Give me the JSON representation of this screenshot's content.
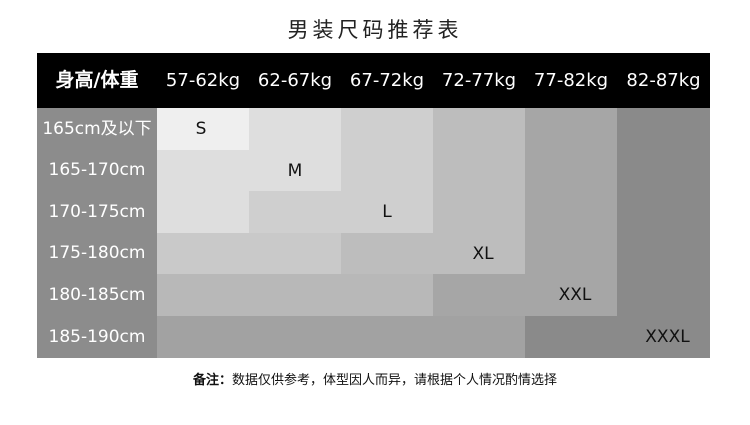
{
  "title": "男装尺码推荐表",
  "header": {
    "corner": "身高/体重",
    "weights": [
      "57-62kg",
      "62-67kg",
      "67-72kg",
      "72-77kg",
      "77-82kg",
      "82-87kg"
    ]
  },
  "heights": [
    "165cm及以下",
    "165-170cm",
    "170-175cm",
    "175-180cm",
    "180-185cm",
    "185-190cm"
  ],
  "sizes": [
    "S",
    "M",
    "L",
    "XL",
    "XXL",
    "XXXL"
  ],
  "cell_colors": [
    [
      "#efefef",
      "#dedede",
      "#cfcfcf",
      "#bdbdbd",
      "#a6a6a6",
      "#8a8a8a"
    ],
    [
      "#dedede",
      "#dedede",
      "#cfcfcf",
      "#bdbdbd",
      "#a6a6a6",
      "#8a8a8a"
    ],
    [
      "#dedede",
      "#cfcfcf",
      "#cfcfcf",
      "#bdbdbd",
      "#a6a6a6",
      "#8a8a8a"
    ],
    [
      "#c9c9c9",
      "#c9c9c9",
      "#bdbdbd",
      "#bdbdbd",
      "#a6a6a6",
      "#8a8a8a"
    ],
    [
      "#b8b8b8",
      "#b8b8b8",
      "#b8b8b8",
      "#a6a6a6",
      "#a6a6a6",
      "#8a8a8a"
    ],
    [
      "#a2a2a2",
      "#a2a2a2",
      "#a2a2a2",
      "#a2a2a2",
      "#8a8a8a",
      "#8a8a8a"
    ]
  ],
  "note": {
    "label": "备注：",
    "text": "数据仅供参考，体型因人而异，请根据个人情况酌情选择"
  }
}
